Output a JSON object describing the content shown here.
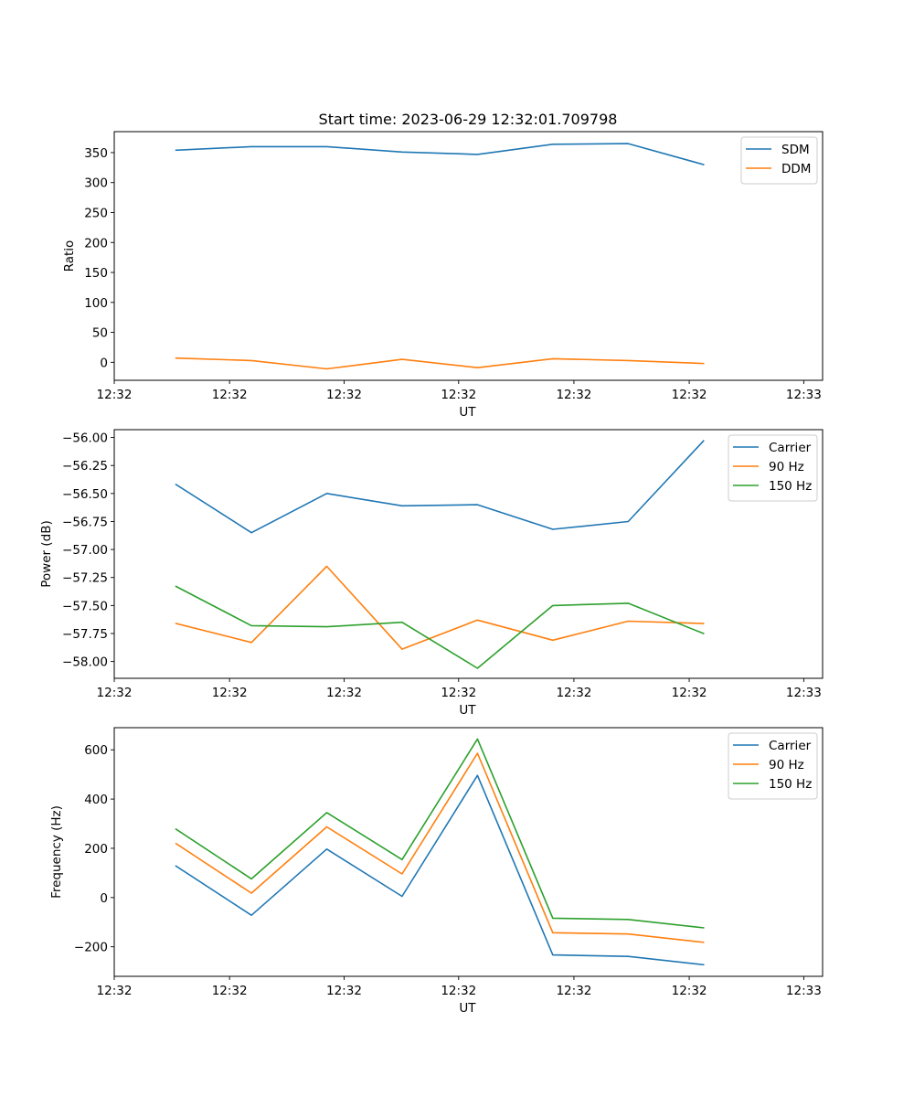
{
  "figure_title": "Start time: 2023-06-29 12:32:01.709798",
  "chart_data": [
    {
      "type": "line",
      "title": "Start time: 2023-06-29 12:32:01.709798",
      "xlabel": "UT",
      "ylabel": "Ratio",
      "x": [
        1,
        2,
        3,
        4,
        5,
        6,
        7,
        8
      ],
      "xlim": [
        0.18,
        9.58
      ],
      "x_ticks": [
        0.18,
        1.71,
        3.23,
        4.75,
        6.28,
        7.81,
        9.33
      ],
      "x_tick_labels": [
        "12:32",
        "12:32",
        "12:32",
        "12:32",
        "12:32",
        "12:32",
        "12:33"
      ],
      "ylim": [
        -30,
        385
      ],
      "y_ticks": [
        0,
        50,
        100,
        150,
        200,
        250,
        300,
        350
      ],
      "y_tick_labels": [
        "0",
        "50",
        "100",
        "150",
        "200",
        "250",
        "300",
        "350"
      ],
      "legend_position": "top-right",
      "series": [
        {
          "name": "SDM",
          "color": "#1f77b4",
          "values": [
            354,
            360,
            360,
            351,
            347,
            364,
            365,
            330
          ]
        },
        {
          "name": "DDM",
          "color": "#ff7f0e",
          "values": [
            7,
            3,
            -11,
            5,
            -9,
            6,
            3,
            -2
          ]
        }
      ]
    },
    {
      "type": "line",
      "title": "",
      "xlabel": "UT",
      "ylabel": "Power (dB)",
      "x": [
        1,
        2,
        3,
        4,
        5,
        6,
        7,
        8
      ],
      "xlim": [
        0.18,
        9.58
      ],
      "x_ticks": [
        0.18,
        1.71,
        3.23,
        4.75,
        6.28,
        7.81,
        9.33
      ],
      "x_tick_labels": [
        "12:32",
        "12:32",
        "12:32",
        "12:32",
        "12:32",
        "12:32",
        "12:33"
      ],
      "ylim": [
        -58.15,
        -55.93
      ],
      "y_ticks": [
        -56.0,
        -56.25,
        -56.5,
        -56.75,
        -57.0,
        -57.25,
        -57.5,
        -57.75,
        -58.0
      ],
      "y_tick_labels": [
        "−56.00",
        "−56.25",
        "−56.50",
        "−56.75",
        "−57.00",
        "−57.25",
        "−57.50",
        "−57.75",
        "−58.00"
      ],
      "legend_position": "top-right",
      "series": [
        {
          "name": "Carrier",
          "color": "#1f77b4",
          "values": [
            -56.42,
            -56.85,
            -56.5,
            -56.61,
            -56.6,
            -56.82,
            -56.75,
            -56.03
          ]
        },
        {
          "name": "90 Hz",
          "color": "#ff7f0e",
          "values": [
            -57.66,
            -57.83,
            -57.15,
            -57.89,
            -57.63,
            -57.81,
            -57.64,
            -57.66
          ]
        },
        {
          "name": "150 Hz",
          "color": "#2ca02c",
          "values": [
            -57.33,
            -57.68,
            -57.69,
            -57.65,
            -58.06,
            -57.5,
            -57.48,
            -57.75
          ]
        }
      ]
    },
    {
      "type": "line",
      "title": "",
      "xlabel": "UT",
      "ylabel": "Frequency (Hz)",
      "x": [
        1,
        2,
        3,
        4,
        5,
        6,
        7,
        8
      ],
      "xlim": [
        0.18,
        9.58
      ],
      "x_ticks": [
        0.18,
        1.71,
        3.23,
        4.75,
        6.28,
        7.81,
        9.33
      ],
      "x_tick_labels": [
        "12:32",
        "12:32",
        "12:32",
        "12:32",
        "12:32",
        "12:32",
        "12:33"
      ],
      "ylim": [
        -320,
        690
      ],
      "y_ticks": [
        -200,
        0,
        200,
        400,
        600
      ],
      "y_tick_labels": [
        "−200",
        "0",
        "200",
        "400",
        "600"
      ],
      "legend_position": "top-right",
      "series": [
        {
          "name": "Carrier",
          "color": "#1f77b4",
          "values": [
            128,
            -72,
            197,
            5,
            496,
            -233,
            -239,
            -273
          ]
        },
        {
          "name": "90 Hz",
          "color": "#ff7f0e",
          "values": [
            219,
            18,
            287,
            96,
            586,
            -143,
            -148,
            -182
          ]
        },
        {
          "name": "150 Hz",
          "color": "#2ca02c",
          "values": [
            278,
            76,
            345,
            154,
            644,
            -84,
            -89,
            -123
          ]
        }
      ]
    }
  ]
}
